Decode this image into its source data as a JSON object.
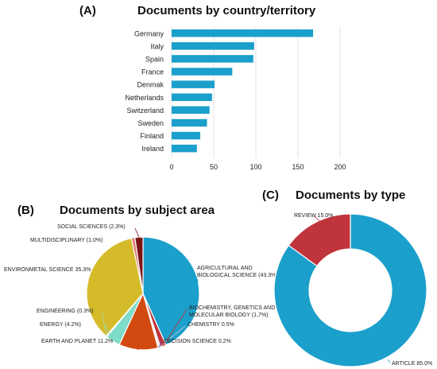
{
  "panels": {
    "a": {
      "letter": "(A)",
      "title": "Documents by country/territory"
    },
    "b": {
      "letter": "(B)",
      "title": "Documents by subject area"
    },
    "c": {
      "letter": "(C)",
      "title": "Documents by type"
    }
  },
  "colors": {
    "bar": "#1b9fcb",
    "agricultural": "#1b9fcb",
    "biochemistry": "#c0343b",
    "chemistry": "#d9d9d9",
    "decision": "#6a5acd",
    "earth": "#d24a10",
    "energy": "#7fdcc9",
    "engineering": "#a8d8a8",
    "environmental": "#d5bb2a",
    "multidisciplinary": "#e07a7a",
    "social": "#7a1515",
    "article": "#1b9fcb",
    "review": "#c0343b"
  },
  "chart_data": [
    {
      "type": "bar",
      "orientation": "horizontal",
      "title": "Documents by country/territory",
      "categories": [
        "Germany",
        "Italy",
        "Spain",
        "France",
        "Denmak",
        "Netherlands",
        "Switzerland",
        "Sweden",
        "Finland",
        "Ireland"
      ],
      "values": [
        168,
        98,
        97,
        72,
        51,
        48,
        45,
        42,
        34,
        30
      ],
      "xlim": [
        0,
        200
      ],
      "xticks": [
        "0",
        "50",
        "100",
        "150",
        "200"
      ],
      "grid": true
    },
    {
      "type": "pie",
      "title": "Documents by subject area",
      "slices": [
        {
          "label": "AGRICULTURAL AND BIOLOGICAL SCIENCE (43.3%)",
          "lines": [
            "AGRICULTURAL AND",
            "BIOLOGICAL SCIENCE (43.3%)"
          ],
          "value": 43.3,
          "color": "agricultural"
        },
        {
          "label": "BIOCHEMISTRY, GENETICS AND MOLECULAR BIOLOGY (1,7%)",
          "lines": [
            "BIOCHEMISTRY, GENETICS AND",
            "MOLECULAR BIOLOGY (1,7%)"
          ],
          "value": 1.7,
          "color": "biochemistry"
        },
        {
          "label": "CHEMISTRY 0.5%",
          "lines": [
            "CHEMISTRY 0.5%"
          ],
          "value": 0.5,
          "color": "chemistry"
        },
        {
          "label": "DECISION SCIENCE 0.2%",
          "lines": [
            "DECISION SCIENCE 0.2%"
          ],
          "value": 0.2,
          "color": "decision"
        },
        {
          "label": "EARTH AND PLANET 11.2%",
          "lines": [
            "EARTH AND PLANET 11.2%"
          ],
          "value": 11.2,
          "color": "earth"
        },
        {
          "label": "ENERGY (4.2%)",
          "lines": [
            "ENERGY (4.2%)"
          ],
          "value": 4.2,
          "color": "energy"
        },
        {
          "label": "ENGINEERING (0.3%)",
          "lines": [
            "ENGINEERING (0.3%)"
          ],
          "value": 0.3,
          "color": "engineering"
        },
        {
          "label": "ENVIRONMETAL SCIENCE 35.3%",
          "lines": [
            "ENVIRONMETAL SCIENCE 35.3%"
          ],
          "value": 35.3,
          "color": "environmental"
        },
        {
          "label": "MULTIDISCIPLINARY (1.0%)",
          "lines": [
            "MULTIDISCIPLINARY (1.0%)"
          ],
          "value": 1.0,
          "color": "multidisciplinary"
        },
        {
          "label": "SOCIAL SCIENCES (2.3%)",
          "lines": [
            "SOCIAL SCIENCES (2.3%)"
          ],
          "value": 2.3,
          "color": "social"
        }
      ]
    },
    {
      "type": "pie",
      "style": "donut",
      "title": "Documents by type",
      "slices": [
        {
          "label": "ARTICLE 85.0%",
          "value": 85.0,
          "color": "article"
        },
        {
          "label": "REVIEW 15.0%",
          "value": 15.0,
          "color": "review"
        }
      ]
    }
  ]
}
